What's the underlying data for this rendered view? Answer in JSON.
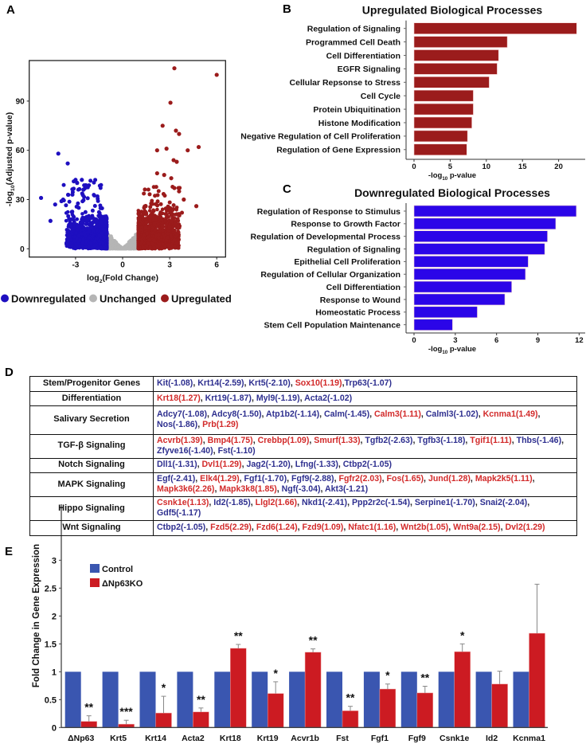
{
  "panels": {
    "a": "A",
    "b": "B",
    "c": "C",
    "d": "D",
    "e": "E"
  },
  "colors": {
    "down": "#1e0fc0",
    "up": "#9b1b1b",
    "unchanged": "#b5b5b5",
    "bar_up": "#9b1c1c",
    "bar_down": "#2b05e8",
    "control": "#3a56b0",
    "ko": "#cc1b22",
    "table_down": "#2e2f8f",
    "table_up": "#d22a2a"
  },
  "chart_data": [
    {
      "type": "scatter",
      "panel": "A",
      "xlabel_parts": [
        "log",
        "2",
        "(Fold Change)"
      ],
      "ylabel_parts": [
        "-log",
        "10",
        "(Adjusted p-value)"
      ],
      "xlim": [
        -5.5,
        6.5
      ],
      "ylim": [
        -5,
        115
      ],
      "xticks": [
        "-3",
        "0",
        "3",
        "6"
      ],
      "yticks": [
        "0",
        "30",
        "60",
        "90"
      ],
      "legend": [
        {
          "label": "Downregulated",
          "color": "#1e0fc0"
        },
        {
          "label": "Unchanged",
          "color": "#b5b5b5"
        },
        {
          "label": "Upregulated",
          "color": "#9b1b1b"
        }
      ],
      "legend_position": "bottom",
      "highlighted_points": {
        "Upregulated": [
          [
            3.3,
            110
          ],
          [
            6.0,
            106
          ],
          [
            3.05,
            89
          ],
          [
            2.55,
            75
          ],
          [
            3.4,
            72
          ],
          [
            3.6,
            70
          ],
          [
            4.85,
            62
          ],
          [
            2.8,
            61
          ],
          [
            2.2,
            60
          ],
          [
            4.15,
            60
          ],
          [
            3.25,
            54
          ],
          [
            3.45,
            53
          ],
          [
            2.2,
            46
          ],
          [
            2.65,
            45
          ],
          [
            3.1,
            43
          ],
          [
            4.7,
            26
          ],
          [
            3.9,
            30
          ],
          [
            3.6,
            35
          ],
          [
            3.3,
            37
          ]
        ],
        "Downregulated": [
          [
            -4.1,
            58
          ],
          [
            -3.5,
            52
          ],
          [
            -5.2,
            31
          ],
          [
            -4.3,
            27
          ],
          [
            -3.9,
            29
          ],
          [
            -4.6,
            17
          ],
          [
            -3.0,
            42
          ],
          [
            -2.6,
            42
          ],
          [
            -2.3,
            38
          ],
          [
            -2.5,
            36
          ],
          [
            -3.2,
            33
          ]
        ]
      }
    },
    {
      "type": "bar",
      "panel": "B",
      "orientation": "horizontal",
      "title": "Upregulated Biological Processes",
      "xlabel_parts": [
        "-log",
        "10",
        " p-value"
      ],
      "xlim": [
        0,
        23
      ],
      "xticks": [
        "0",
        "5",
        "10",
        "15",
        "20"
      ],
      "categories": [
        "Regulation of Signaling",
        "Programmed Cell Death",
        "Cell Differentiation",
        "EGFR Signaling",
        "Cellular Repsonse to Stress",
        "Cell Cycle",
        "Protein Ubiquitination",
        "Histone Modification",
        "Negative Regulation of Cell Proliferation",
        "Regulation of Gene Expression"
      ],
      "values": [
        22.5,
        12.9,
        11.7,
        11.5,
        10.4,
        8.2,
        8.2,
        8.0,
        7.4,
        7.3
      ]
    },
    {
      "type": "bar",
      "panel": "C",
      "orientation": "horizontal",
      "title": "Downregulated Biological Processes",
      "xlabel_parts": [
        "-log",
        "10",
        " p-value"
      ],
      "xlim": [
        0,
        12.5
      ],
      "xticks": [
        "0",
        "3",
        "6",
        "9",
        "12"
      ],
      "categories": [
        "Regulation of Response to Stimulus",
        "Response to Growth Factor",
        "Regulation of Developmental Process",
        "Regulation of Signaling",
        "Epithelial Cell Proliferation",
        "Regulation of Cellular Organization",
        "Cell Differentiation",
        "Response to Wound",
        "Homeostatic Process",
        "Stem Cell Population Maintenance"
      ],
      "values": [
        11.8,
        10.3,
        9.7,
        9.5,
        8.3,
        8.1,
        7.1,
        6.6,
        4.6,
        2.8
      ]
    },
    {
      "type": "bar",
      "panel": "E",
      "ylabel": "Fold Change in Gene Expression",
      "ylim": [
        0,
        3
      ],
      "yticks": [
        "0",
        "0.5",
        "1",
        "1.5",
        "2",
        "2.5",
        "3"
      ],
      "categories": [
        "ΔNp63",
        "Krt5",
        "Krt14",
        "Acta2",
        "Krt18",
        "Krt19",
        "Acvr1b",
        "Fst",
        "Fgf1",
        "Fgf9",
        "Csnk1e",
        "Id2",
        "Kcnma1"
      ],
      "legend_position": "top-left",
      "series": [
        {
          "name": "Control",
          "values": [
            1,
            1,
            1,
            1,
            1,
            1,
            1,
            1,
            1,
            1,
            1,
            1,
            1
          ]
        },
        {
          "name": "ΔNp63KO",
          "values": [
            0.11,
            0.06,
            0.26,
            0.28,
            1.42,
            0.61,
            1.35,
            0.3,
            0.69,
            0.62,
            1.36,
            0.78,
            1.69
          ],
          "error_upper": [
            0.21,
            0.13,
            0.56,
            0.35,
            1.49,
            0.82,
            1.41,
            0.38,
            0.78,
            0.74,
            1.5,
            1.01,
            2.57
          ],
          "significance": [
            "**",
            "***",
            "*",
            "**",
            "**",
            "*",
            "**",
            "**",
            "*",
            "**",
            "*",
            "",
            ""
          ]
        }
      ]
    }
  ],
  "table": {
    "rows": [
      {
        "category": "Stem/Progenitor Genes",
        "genes": [
          [
            "Kit(-1.08)",
            "down"
          ],
          [
            "Krt14(-2.59)",
            "down"
          ],
          [
            "Krt5(-2.10)",
            "down"
          ],
          [
            "Sox10(1.19)",
            "up"
          ],
          [
            "Trp63(-1.07)",
            "down"
          ]
        ]
      },
      {
        "category": "Differentiation",
        "genes": [
          [
            "Krt18(1.27)",
            "up"
          ],
          [
            "Krt19(-1.87)",
            "down"
          ],
          [
            "Myl9(-1.19)",
            "down"
          ],
          [
            "Acta2(-1.02)",
            "down"
          ]
        ]
      },
      {
        "category": "Salivary Secretion",
        "genes": [
          [
            "Adcy7(-1.08)",
            "down"
          ],
          [
            "Adcy8(-1.50)",
            "down"
          ],
          [
            "Atp1b2(-1.14)",
            "down"
          ],
          [
            "Calm(-1.45)",
            "down"
          ],
          [
            "Calm3(1.11)",
            "up"
          ],
          [
            "Calml3(-1.02)",
            "down"
          ],
          [
            "Kcnma1(1.49)",
            "up"
          ],
          [
            "Nos(-1.86)",
            "down"
          ],
          [
            "Prb(1.29)",
            "up"
          ]
        ]
      },
      {
        "category": "TGF-β Signaling",
        "genes": [
          [
            "Acvrb(1.39)",
            "up"
          ],
          [
            "Bmp4(1.75)",
            "up"
          ],
          [
            "Crebbp(1.09)",
            "up"
          ],
          [
            "Smurf(1.33)",
            "up"
          ],
          [
            "Tgfb2(-2.63)",
            "down"
          ],
          [
            "Tgfb3(-1.18)",
            "down"
          ],
          [
            "Tgif1(1.11)",
            "up"
          ],
          [
            "Thbs(-1.46)",
            "down"
          ],
          [
            "Zfyve16(-1.40)",
            "down"
          ],
          [
            "Fst(-1.10)",
            "down"
          ]
        ]
      },
      {
        "category": "Notch Signaling",
        "genes": [
          [
            "Dll1(-1.31)",
            "down"
          ],
          [
            "Dvl1(1.29)",
            "up"
          ],
          [
            "Jag2(-1.20)",
            "down"
          ],
          [
            "Lfng(-1.33)",
            "down"
          ],
          [
            "Ctbp2(-1.05)",
            "down"
          ]
        ]
      },
      {
        "category": "MAPK Signaling",
        "genes": [
          [
            "Egf(-2.41)",
            "down"
          ],
          [
            "Elk4(1.29)",
            "up"
          ],
          [
            "Fgf1(-1.70)",
            "down"
          ],
          [
            "Fgf9(-2.88)",
            "down"
          ],
          [
            "Fgfr2(2.03)",
            "up"
          ],
          [
            "Fos(1.65)",
            "up"
          ],
          [
            "Jund(1.28)",
            "up"
          ],
          [
            "Mapk2k5(1.11)",
            "up"
          ],
          [
            "Mapk3k6(2.26)",
            "up"
          ],
          [
            "Mapk3k8(1.85)",
            "up"
          ],
          [
            "Ngf(-3.04)",
            "down"
          ],
          [
            "Akt3(-1.21)",
            "down"
          ]
        ]
      },
      {
        "category": "Hippo Signaling",
        "genes": [
          [
            "Csnk1e(1.13)",
            "up"
          ],
          [
            "Id2(-1.85)",
            "down"
          ],
          [
            "Llgl2(1.66)",
            "up"
          ],
          [
            "Nkd1(-2.41)",
            "down"
          ],
          [
            "Ppp2r2c(-1.54)",
            "down"
          ],
          [
            "Serpine1(-1.70)",
            "down"
          ],
          [
            "Snai2(-2.04)",
            "down"
          ],
          [
            "Gdf5(-1.17)",
            "down"
          ]
        ]
      },
      {
        "category": "Wnt Signaling",
        "genes": [
          [
            "Ctbp2(-1.05)",
            "down"
          ],
          [
            "Fzd5(2.29)",
            "up"
          ],
          [
            "Fzd6(1.24)",
            "up"
          ],
          [
            "Fzd9(1.09)",
            "up"
          ],
          [
            "Nfatc1(1.16)",
            "up"
          ],
          [
            "Wnt2b(1.05)",
            "up"
          ],
          [
            "Wnt9a(2.15)",
            "up"
          ],
          [
            "Dvl2(1.29)",
            "up"
          ]
        ]
      }
    ]
  }
}
